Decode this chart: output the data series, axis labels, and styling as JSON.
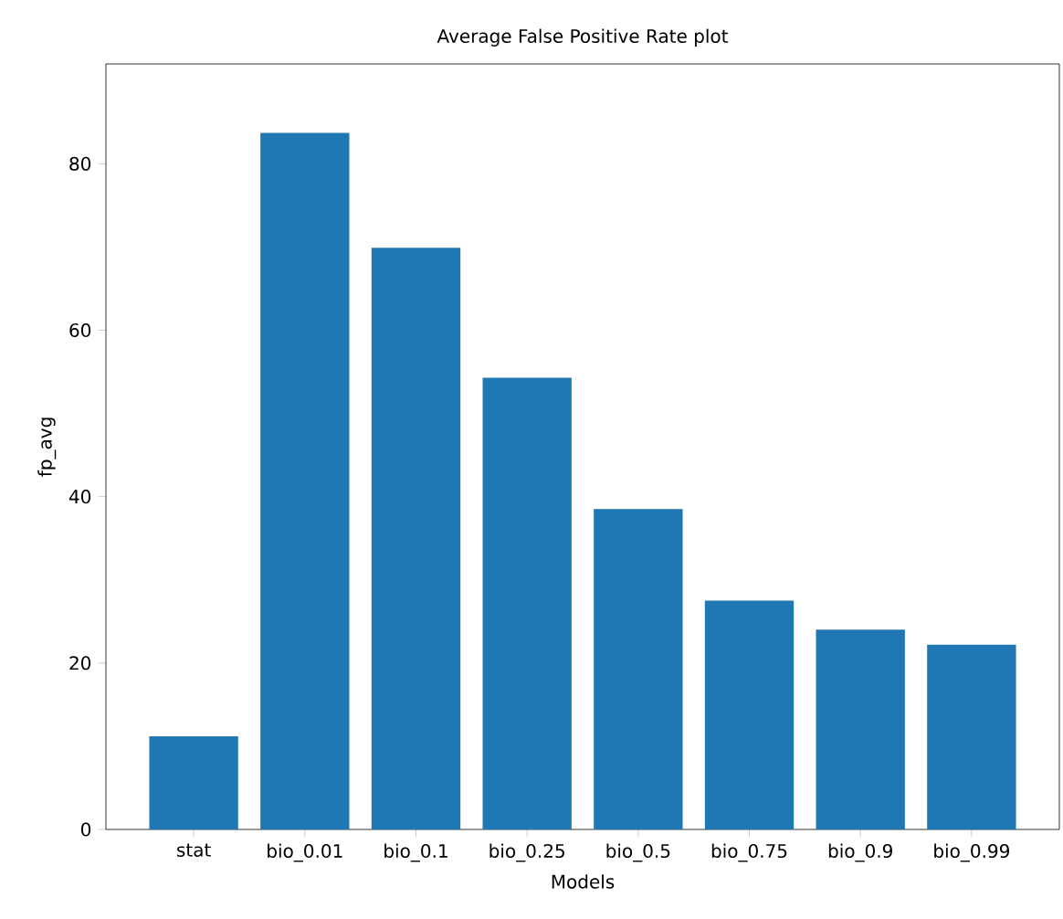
{
  "chart_data": {
    "type": "bar",
    "title": "Average False Positive Rate plot",
    "xlabel": "Models",
    "ylabel": "fp_avg",
    "categories": [
      "stat",
      "bio_0.01",
      "bio_0.1",
      "bio_0.25",
      "bio_0.5",
      "bio_0.75",
      "bio_0.9",
      "bio_0.99"
    ],
    "values": [
      11.2,
      83.7,
      69.9,
      54.3,
      38.5,
      27.5,
      24.0,
      22.2
    ],
    "color": "#1f77b4",
    "ylim": [
      0,
      92
    ],
    "yticks": [
      0,
      20,
      40,
      60,
      80
    ]
  }
}
